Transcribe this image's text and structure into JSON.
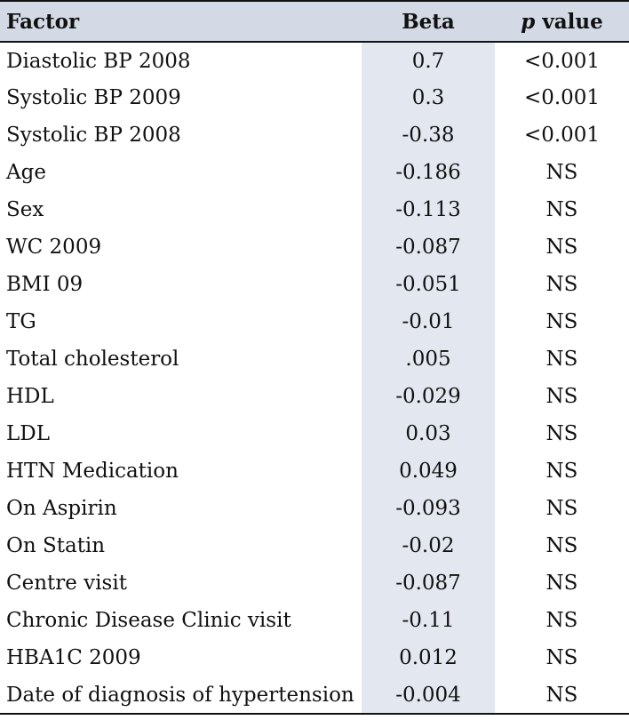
{
  "table": {
    "headers": {
      "factor": "Factor",
      "beta": "Beta",
      "p_italic": "p",
      "p_rest": " value"
    },
    "rows": [
      {
        "factor": "Diastolic BP 2008",
        "beta": "0.7",
        "p": "<0.001"
      },
      {
        "factor": "Systolic BP 2009",
        "beta": "0.3",
        "p": "<0.001"
      },
      {
        "factor": "Systolic BP 2008",
        "beta": "-0.38",
        "p": "<0.001"
      },
      {
        "factor": "Age",
        "beta": "-0.186",
        "p": "NS"
      },
      {
        "factor": "Sex",
        "beta": "-0.113",
        "p": "NS"
      },
      {
        "factor": "WC 2009",
        "beta": "-0.087",
        "p": "NS"
      },
      {
        "factor": "BMI 09",
        "beta": "-0.051",
        "p": "NS"
      },
      {
        "factor": "TG",
        "beta": "-0.01",
        "p": "NS"
      },
      {
        "factor": "Total cholesterol",
        "beta": ".005",
        "p": "NS"
      },
      {
        "factor": "HDL",
        "beta": "-0.029",
        "p": "NS"
      },
      {
        "factor": "LDL",
        "beta": "0.03",
        "p": "NS"
      },
      {
        "factor": "HTN Medication",
        "beta": "0.049",
        "p": "NS"
      },
      {
        "factor": "On Aspirin",
        "beta": "-0.093",
        "p": "NS"
      },
      {
        "factor": "On Statin",
        "beta": "-0.02",
        "p": "NS"
      },
      {
        "factor": "Centre visit",
        "beta": "-0.087",
        "p": "NS"
      },
      {
        "factor": "Chronic Disease Clinic visit",
        "beta": "-0.11",
        "p": "NS"
      },
      {
        "factor": "HBA1C 2009",
        "beta": "0.012",
        "p": "NS"
      },
      {
        "factor": "Date of diagnosis of hypertension",
        "beta": "-0.004",
        "p": "NS"
      }
    ]
  }
}
